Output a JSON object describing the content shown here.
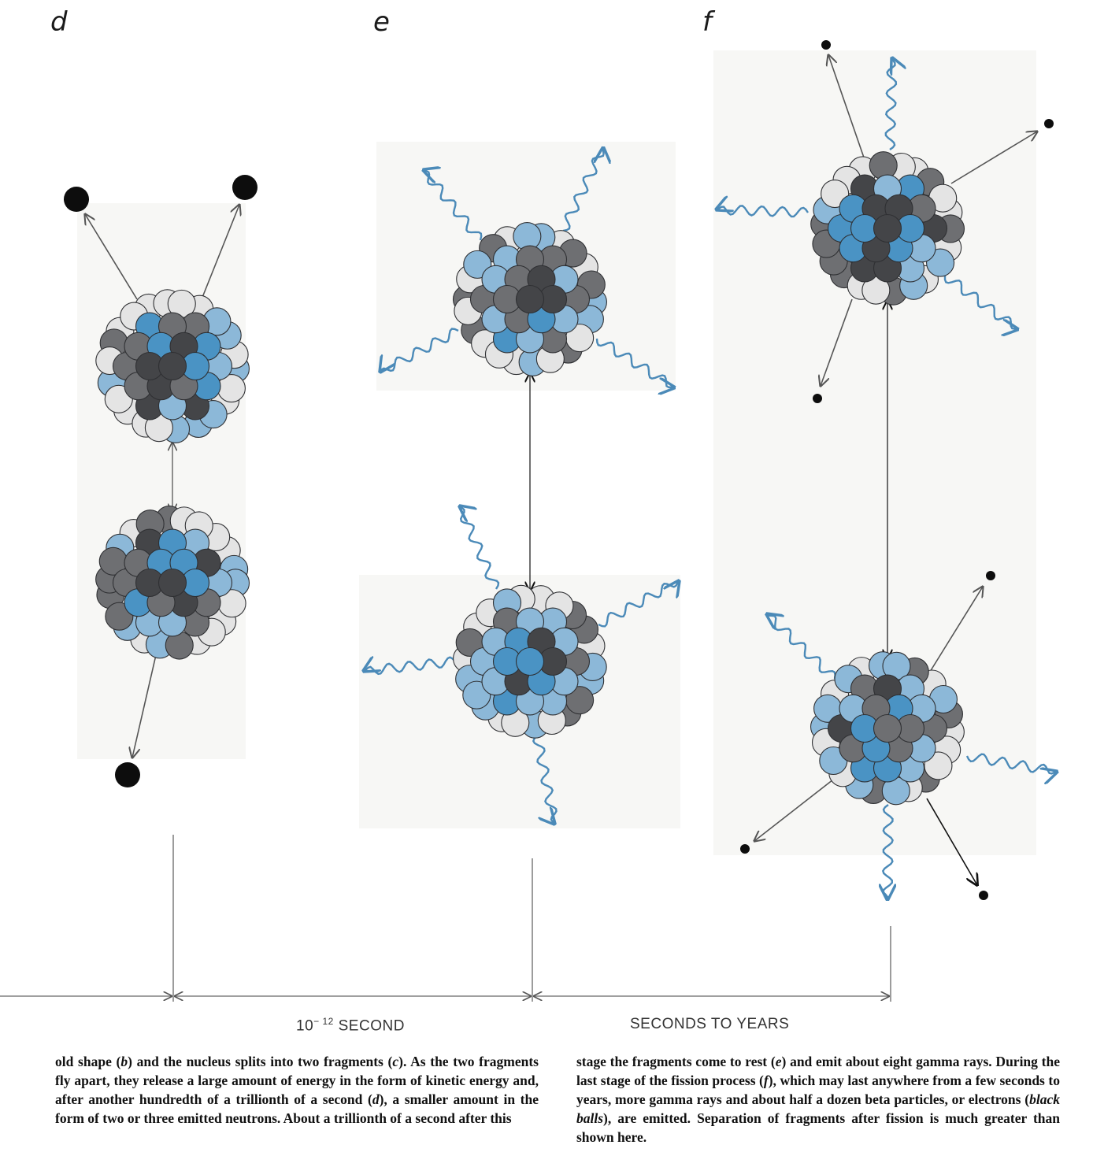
{
  "panels": [
    {
      "label": "d"
    },
    {
      "label": "e"
    },
    {
      "label": "f"
    }
  ],
  "timeline": {
    "label_left": {
      "prefix": "10",
      "exponent": "− 12",
      "suffix": " SECOND"
    },
    "label_right": "SECONDS TO YEARS"
  },
  "caption": {
    "left": [
      {
        "t": "old shape ("
      },
      {
        "t": "b",
        "i": true
      },
      {
        "t": ") and the nucleus splits into two fragments ("
      },
      {
        "t": "c",
        "i": true
      },
      {
        "t": "). As the two fragments fly apart, they release a large amount of energy in the form of kinetic energy and, after another hundredth of a trillionth of a second ("
      },
      {
        "t": "d",
        "i": true
      },
      {
        "t": "), a smaller amount in the form of two or three emitted neutrons. About a trillionth of a second after this"
      }
    ],
    "right": [
      {
        "t": "stage the fragments come to rest ("
      },
      {
        "t": "e",
        "i": true
      },
      {
        "t": ") and emit about eight gamma rays. During the last stage of the fission process ("
      },
      {
        "t": "f",
        "i": true
      },
      {
        "t": "), which may last anywhere from a few seconds to years, more gamma rays and about half a dozen beta particles, or electrons ("
      },
      {
        "t": "black balls",
        "i": true
      },
      {
        "t": "), are emitted. Separation of fragments after fission is much greater than shown here."
      }
    ]
  },
  "colors": {
    "nucleon_blue": "#4a93c4",
    "nucleon_light_blue": "#8cb8d8",
    "nucleon_dark": "#444548",
    "nucleon_gray": "#6e6f72",
    "nucleon_white": "#e4e4e4",
    "gamma_ray": "#4b8ab8",
    "arrow": "#555555"
  },
  "icons": [
    "nucleus-icon",
    "neutron-icon",
    "electron-icon",
    "gamma-ray-icon",
    "arrow-icon"
  ]
}
